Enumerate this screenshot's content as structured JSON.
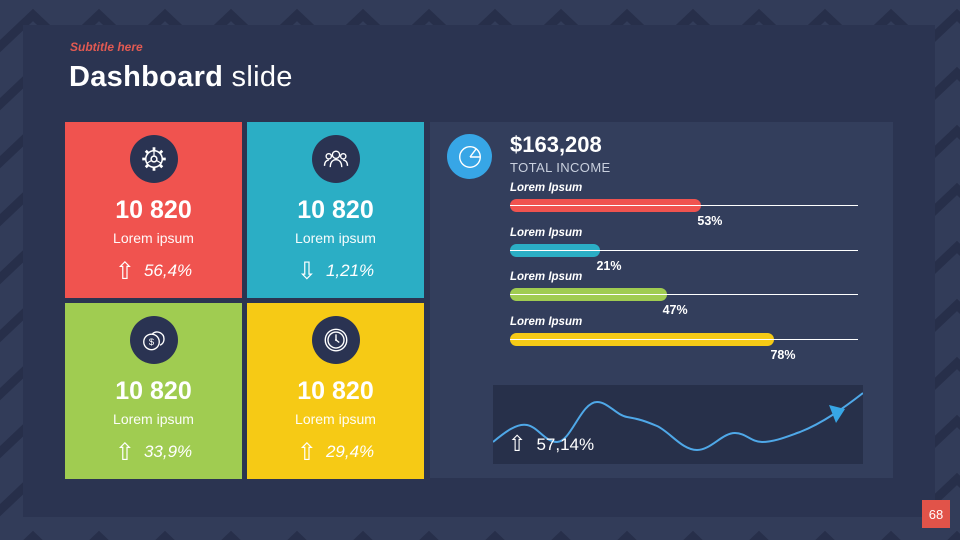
{
  "slide": {
    "subtitle": "Subtitle here",
    "title_bold": "Dashboard",
    "title_light": " slide",
    "page_number": "68"
  },
  "theme": {
    "outer_background": "#323C59",
    "pattern_line": "#272F4A",
    "slide_background": "#2B3451",
    "panel_background": "#333E5C",
    "spark_panel_background": "#27304A",
    "icon_circle": "#2A3352",
    "accent_blue": "#37A6E6",
    "accent_red": "#E15349",
    "text_white": "#FFFFFF",
    "text_muted": "#C9D0DE"
  },
  "cards": [
    {
      "icon": "gear-icon",
      "value": "10 820",
      "label": "Lorem ipsum",
      "trend": "up",
      "trend_value": "56,4%",
      "color": "#F0534F"
    },
    {
      "icon": "users-icon",
      "value": "10 820",
      "label": "Lorem ipsum",
      "trend": "down",
      "trend_value": "1,21%",
      "color": "#2BAEC5"
    },
    {
      "icon": "coins-icon",
      "value": "10 820",
      "label": "Lorem ipsum",
      "trend": "up",
      "trend_value": "33,9%",
      "color": "#A0CC51"
    },
    {
      "icon": "clock-icon",
      "value": "10 820",
      "label": "Lorem ipsum",
      "trend": "up",
      "trend_value": "29,4%",
      "color": "#F6CA15"
    }
  ],
  "income_panel": {
    "icon": "pie-chart-icon",
    "total_value": "$163,208",
    "total_label": "TOTAL INCOME",
    "bars": [
      {
        "label": "Lorem Ipsum",
        "percent": "53%",
        "width_pct": 55,
        "color": "#F0534F"
      },
      {
        "label": "Lorem Ipsum",
        "percent": "21%",
        "width_pct": 26,
        "color": "#2BAEC5"
      },
      {
        "label": "Lorem Ipsum",
        "percent": "47%",
        "width_pct": 45,
        "color": "#A0CC51"
      },
      {
        "label": "Lorem Ipsum",
        "percent": "78%",
        "width_pct": 76,
        "color": "#F6CA15"
      }
    ],
    "trend": {
      "direction": "up",
      "value": "57,14%"
    }
  },
  "chart_data": [
    {
      "type": "bar",
      "orientation": "horizontal",
      "title": "$163,208 TOTAL INCOME",
      "categories": [
        "Lorem Ipsum",
        "Lorem Ipsum",
        "Lorem Ipsum",
        "Lorem Ipsum"
      ],
      "values": [
        53,
        21,
        47,
        78
      ],
      "unit": "%",
      "colors": [
        "#F0534F",
        "#2BAEC5",
        "#A0CC51",
        "#F6CA15"
      ],
      "xlim": [
        0,
        100
      ],
      "grid": false,
      "legend": false
    },
    {
      "type": "line",
      "name": "income-trend-sparkline",
      "values": [
        28,
        49,
        28,
        78,
        59,
        49,
        18,
        39,
        28,
        41,
        60,
        85
      ],
      "annotation": "57,14%",
      "trend": "up",
      "color": "#4FA8E8",
      "grid": false,
      "legend": false
    }
  ]
}
